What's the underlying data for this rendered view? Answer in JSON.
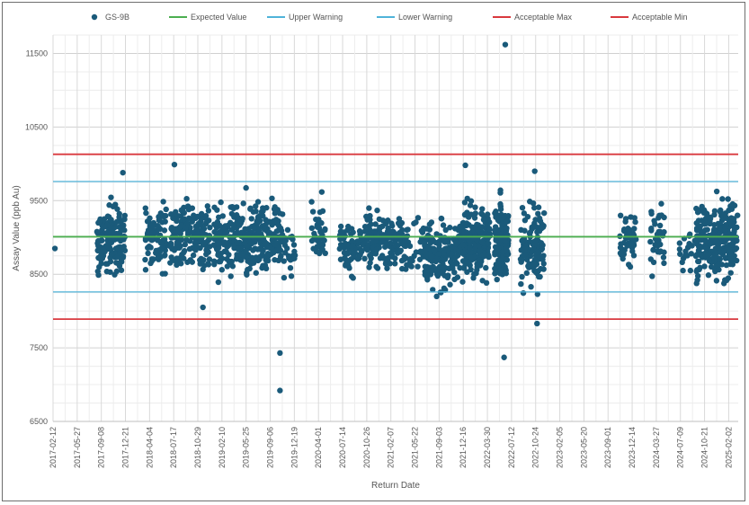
{
  "chart_data": {
    "type": "scatter",
    "title": "",
    "xlabel": "Return Date",
    "ylabel": "Assay Value (ppb Au)",
    "ylim": [
      6500,
      11750
    ],
    "yticks": [
      6500,
      7500,
      8500,
      9500,
      10500,
      11500
    ],
    "xlim": [
      "2017-02-12",
      "2025-03-15"
    ],
    "xticks": [
      "2017-02-12",
      "2017-05-27",
      "2017-09-08",
      "2017-12-21",
      "2018-04-04",
      "2018-07-17",
      "2018-10-29",
      "2019-02-10",
      "2019-05-25",
      "2019-09-06",
      "2019-12-19",
      "2020-04-01",
      "2020-07-14",
      "2020-10-26",
      "2021-02-07",
      "2021-05-22",
      "2021-09-03",
      "2021-12-16",
      "2022-03-30",
      "2022-07-12",
      "2022-10-24",
      "2023-02-05",
      "2023-05-20",
      "2023-09-01",
      "2023-12-14",
      "2024-03-27",
      "2024-07-09",
      "2024-10-21",
      "2025-02-02"
    ],
    "grid": true,
    "legend_position": "top",
    "legend": [
      {
        "name": "GS-9B",
        "kind": "marker",
        "color": "#1a5a7a"
      },
      {
        "name": "Expected Value",
        "kind": "line",
        "color": "#4caf50"
      },
      {
        "name": "Upper Warning",
        "kind": "line",
        "color": "#4fb3d9"
      },
      {
        "name": "Lower Warning",
        "kind": "line",
        "color": "#4fb3d9"
      },
      {
        "name": "Acceptable Max",
        "kind": "line",
        "color": "#d9393e"
      },
      {
        "name": "Acceptable Min",
        "kind": "line",
        "color": "#d9393e"
      }
    ],
    "reference_lines": [
      {
        "name": "Acceptable Max",
        "value": 10130,
        "color": "#d9393e"
      },
      {
        "name": "Upper Warning",
        "value": 9760,
        "color": "#4fb3d9"
      },
      {
        "name": "Expected Value",
        "value": 9010,
        "color": "#4caf50"
      },
      {
        "name": "Lower Warning",
        "value": 8260,
        "color": "#4fb3d9"
      },
      {
        "name": "Acceptable Min",
        "value": 7890,
        "color": "#d9393e"
      }
    ],
    "series": [
      {
        "name": "GS-9B",
        "color": "#1a5a7a",
        "clusters": [
          {
            "start": "2017-08-20",
            "end": "2017-12-20",
            "min": 8200,
            "max": 9700,
            "count": 160
          },
          {
            "start": "2018-03-15",
            "end": "2018-06-15",
            "min": 8300,
            "max": 9700,
            "count": 80
          },
          {
            "start": "2018-07-01",
            "end": "2018-12-20",
            "min": 8250,
            "max": 9800,
            "count": 170
          },
          {
            "start": "2019-01-05",
            "end": "2019-05-15",
            "min": 8250,
            "max": 9700,
            "count": 130
          },
          {
            "start": "2019-05-15",
            "end": "2019-10-31",
            "min": 8250,
            "max": 9800,
            "count": 190
          },
          {
            "start": "2019-11-01",
            "end": "2019-12-25",
            "min": 8300,
            "max": 9300,
            "count": 25
          },
          {
            "start": "2020-03-01",
            "end": "2020-05-01",
            "min": 8300,
            "max": 9700,
            "count": 40
          },
          {
            "start": "2020-07-01",
            "end": "2020-10-15",
            "min": 8300,
            "max": 9400,
            "count": 70
          },
          {
            "start": "2020-10-15",
            "end": "2021-02-28",
            "min": 8300,
            "max": 9600,
            "count": 110
          },
          {
            "start": "2021-03-01",
            "end": "2021-06-30",
            "min": 8300,
            "max": 9500,
            "count": 60
          },
          {
            "start": "2021-07-01",
            "end": "2021-11-30",
            "min": 8000,
            "max": 9500,
            "count": 170
          },
          {
            "start": "2021-12-01",
            "end": "2022-04-10",
            "min": 8150,
            "max": 9750,
            "count": 220
          },
          {
            "start": "2022-05-01",
            "end": "2022-06-30",
            "min": 8100,
            "max": 9800,
            "count": 130
          },
          {
            "start": "2022-08-20",
            "end": "2022-11-30",
            "min": 7950,
            "max": 9850,
            "count": 120
          },
          {
            "start": "2023-10-20",
            "end": "2023-12-31",
            "min": 8300,
            "max": 9700,
            "count": 45
          },
          {
            "start": "2024-03-01",
            "end": "2024-04-30",
            "min": 8300,
            "max": 9700,
            "count": 40
          },
          {
            "start": "2024-07-01",
            "end": "2024-09-15",
            "min": 8350,
            "max": 9300,
            "count": 20
          },
          {
            "start": "2024-09-15",
            "end": "2025-03-10",
            "min": 8100,
            "max": 9800,
            "count": 260
          }
        ],
        "points": [
          {
            "x": "2017-02-20",
            "y": 8850
          },
          {
            "x": "2017-12-10",
            "y": 9880
          },
          {
            "x": "2018-07-20",
            "y": 9990
          },
          {
            "x": "2018-11-20",
            "y": 8050
          },
          {
            "x": "2019-10-18",
            "y": 7430
          },
          {
            "x": "2019-10-18",
            "y": 6920
          },
          {
            "x": "2021-12-25",
            "y": 9980
          },
          {
            "x": "2022-06-15",
            "y": 11620
          },
          {
            "x": "2022-06-10",
            "y": 7370
          },
          {
            "x": "2022-10-20",
            "y": 9900
          },
          {
            "x": "2022-10-30",
            "y": 7830
          },
          {
            "x": "2024-07-20",
            "y": 8550
          },
          {
            "x": "2025-03-12",
            "y": 9300
          }
        ]
      }
    ]
  }
}
